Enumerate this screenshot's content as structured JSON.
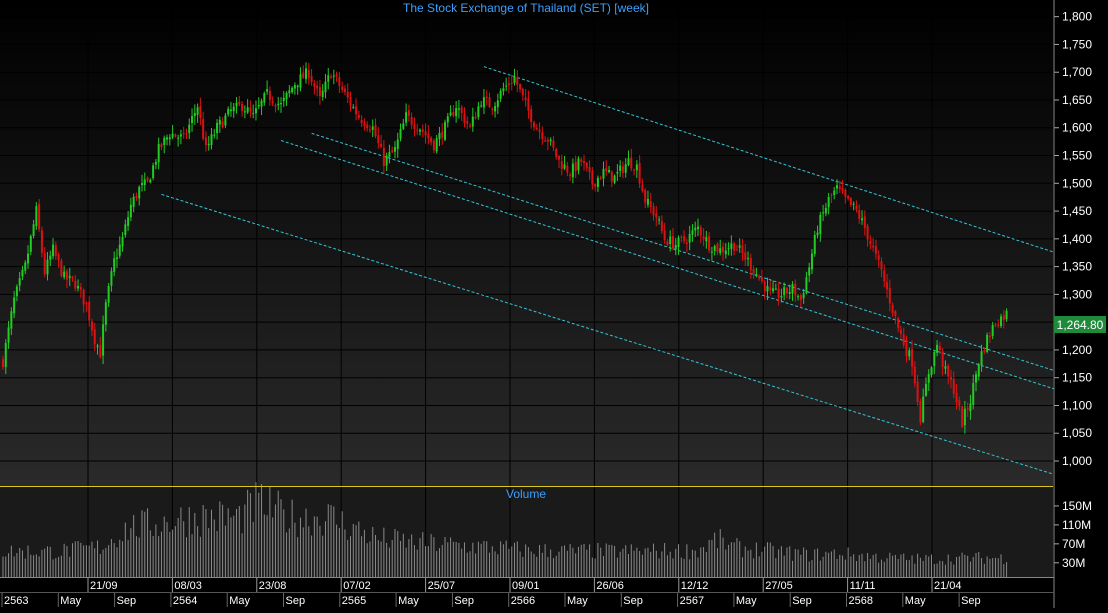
{
  "chart_data": {
    "type": "candlestick",
    "title": "The Stock Exchange of Thailand (SET) [week]",
    "last_price_label": "1,264.80",
    "last_price": 1264.8,
    "price_axis": {
      "range": [
        955,
        1830
      ],
      "ticks": [
        1000,
        1050,
        1100,
        1150,
        1200,
        1250,
        1300,
        1350,
        1400,
        1450,
        1500,
        1550,
        1600,
        1650,
        1700,
        1750,
        1800
      ],
      "tick_labels": [
        "1,000",
        "1,050",
        "1,100",
        "1,150",
        "1,200",
        "",
        "1,300",
        "1,350",
        "1,400",
        "1,450",
        "1,500",
        "1,550",
        "1,600",
        "1,650",
        "1,700",
        "1,750",
        "1,800"
      ]
    },
    "price_anchors": [
      [
        0,
        1180
      ],
      [
        4,
        1290
      ],
      [
        8,
        1350
      ],
      [
        12,
        1450
      ],
      [
        15,
        1340
      ],
      [
        18,
        1380
      ],
      [
        22,
        1330
      ],
      [
        26,
        1320
      ],
      [
        30,
        1280
      ],
      [
        33,
        1220
      ],
      [
        35,
        1195
      ],
      [
        37,
        1280
      ],
      [
        40,
        1360
      ],
      [
        43,
        1400
      ],
      [
        46,
        1460
      ],
      [
        49,
        1490
      ],
      [
        52,
        1500
      ],
      [
        56,
        1560
      ],
      [
        60,
        1590
      ],
      [
        65,
        1580
      ],
      [
        70,
        1640
      ],
      [
        73,
        1560
      ],
      [
        77,
        1600
      ],
      [
        82,
        1630
      ],
      [
        86,
        1640
      ],
      [
        90,
        1620
      ],
      [
        95,
        1660
      ],
      [
        100,
        1640
      ],
      [
        105,
        1680
      ],
      [
        110,
        1700
      ],
      [
        114,
        1650
      ],
      [
        118,
        1700
      ],
      [
        123,
        1660
      ],
      [
        128,
        1620
      ],
      [
        133,
        1600
      ],
      [
        137,
        1540
      ],
      [
        141,
        1560
      ],
      [
        145,
        1620
      ],
      [
        150,
        1600
      ],
      [
        155,
        1570
      ],
      [
        159,
        1600
      ],
      [
        163,
        1640
      ],
      [
        168,
        1600
      ],
      [
        172,
        1650
      ],
      [
        176,
        1640
      ],
      [
        180,
        1670
      ],
      [
        184,
        1690
      ],
      [
        188,
        1640
      ],
      [
        192,
        1600
      ],
      [
        196,
        1580
      ],
      [
        200,
        1540
      ],
      [
        204,
        1520
      ],
      [
        208,
        1540
      ],
      [
        212,
        1500
      ],
      [
        216,
        1520
      ],
      [
        220,
        1510
      ],
      [
        225,
        1540
      ],
      [
        228,
        1530
      ],
      [
        231,
        1470
      ],
      [
        235,
        1440
      ],
      [
        238,
        1400
      ],
      [
        242,
        1390
      ],
      [
        246,
        1400
      ],
      [
        250,
        1420
      ],
      [
        254,
        1390
      ],
      [
        258,
        1380
      ],
      [
        263,
        1390
      ],
      [
        268,
        1360
      ],
      [
        272,
        1330
      ],
      [
        276,
        1300
      ],
      [
        280,
        1300
      ],
      [
        284,
        1310
      ],
      [
        287,
        1290
      ],
      [
        290,
        1350
      ],
      [
        293,
        1420
      ],
      [
        297,
        1470
      ],
      [
        300,
        1490
      ],
      [
        303,
        1470
      ],
      [
        307,
        1450
      ],
      [
        310,
        1420
      ],
      [
        313,
        1380
      ],
      [
        316,
        1340
      ],
      [
        319,
        1290
      ],
      [
        322,
        1240
      ],
      [
        325,
        1200
      ],
      [
        327,
        1180
      ],
      [
        330,
        1080
      ],
      [
        333,
        1160
      ],
      [
        336,
        1210
      ],
      [
        339,
        1160
      ],
      [
        342,
        1130
      ],
      [
        345,
        1070
      ],
      [
        348,
        1110
      ],
      [
        351,
        1180
      ],
      [
        354,
        1220
      ],
      [
        357,
        1250
      ],
      [
        361,
        1265
      ]
    ],
    "channel_lines": [
      {
        "from": [
          57,
          1480
        ],
        "to": [
          378,
          976
        ]
      },
      {
        "from": [
          100,
          1577
        ],
        "to": [
          378,
          1130
        ]
      },
      {
        "from": [
          111,
          1590
        ],
        "to": [
          378,
          1163
        ]
      },
      {
        "from": [
          173,
          1710
        ],
        "to": [
          378,
          1376
        ]
      }
    ],
    "volume_panel": {
      "title": "Volume",
      "range": [
        0,
        190
      ],
      "tick_values": [
        30,
        70,
        110,
        150
      ],
      "tick_labels": [
        "30M",
        "70M",
        "110M",
        "150M"
      ],
      "volume_anchors": [
        [
          0,
          60
        ],
        [
          20,
          60
        ],
        [
          35,
          70
        ],
        [
          45,
          115
        ],
        [
          55,
          125
        ],
        [
          68,
          140
        ],
        [
          85,
          140
        ],
        [
          92,
          175
        ],
        [
          103,
          140
        ],
        [
          118,
          140
        ],
        [
          124,
          120
        ],
        [
          135,
          90
        ],
        [
          150,
          80
        ],
        [
          175,
          70
        ],
        [
          190,
          62
        ],
        [
          220,
          60
        ],
        [
          250,
          62
        ],
        [
          257,
          88
        ],
        [
          262,
          70
        ],
        [
          290,
          52
        ],
        [
          300,
          55
        ],
        [
          318,
          45
        ],
        [
          330,
          42
        ],
        [
          350,
          45
        ],
        [
          361,
          45
        ]
      ]
    },
    "time_axis": {
      "upper_labels": [
        "21/09",
        "08/03",
        "23/08",
        "07/02",
        "25/07",
        "09/01",
        "26/06",
        "12/12",
        "27/05",
        "11/11",
        "21/04"
      ],
      "lower_labels": [
        "2563",
        "May",
        "Sep",
        "2564",
        "May",
        "Sep",
        "2565",
        "May",
        "Sep",
        "2566",
        "May",
        "Sep",
        "2567",
        "May",
        "Sep",
        "2568",
        "May",
        "Sep"
      ]
    },
    "colors": {
      "up": "#22cc22",
      "down": "#dd1111",
      "volume": "#8a8a8a",
      "channel": "#2ec8d8",
      "title": "#3aa0ff",
      "axis_text": "#ffffff",
      "price_box": "#1e8a3a",
      "separator": "#d8c820"
    }
  }
}
